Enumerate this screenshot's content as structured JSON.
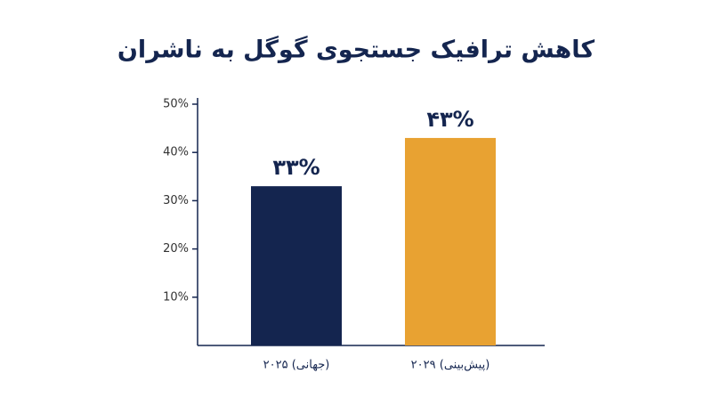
{
  "chart_data": {
    "type": "bar",
    "title": "کاهش ترافیک جستجوی گوگل به ناشران",
    "categories": [
      "۲۰۲۵ (جهانی)",
      "۲۰۲۹ (پیش‌بینی)"
    ],
    "values": [
      33,
      43
    ],
    "value_labels": [
      "۳۳%",
      "۴۳%"
    ],
    "colors": [
      "#14254f",
      "#e8a232"
    ],
    "ylim": [
      0,
      50
    ],
    "yticks": [
      {
        "value": 10,
        "label": "10%"
      },
      {
        "value": 20,
        "label": "20%"
      },
      {
        "value": 30,
        "label": "30%"
      },
      {
        "value": 40,
        "label": "40%"
      },
      {
        "value": 50,
        "label": "50%"
      }
    ]
  }
}
